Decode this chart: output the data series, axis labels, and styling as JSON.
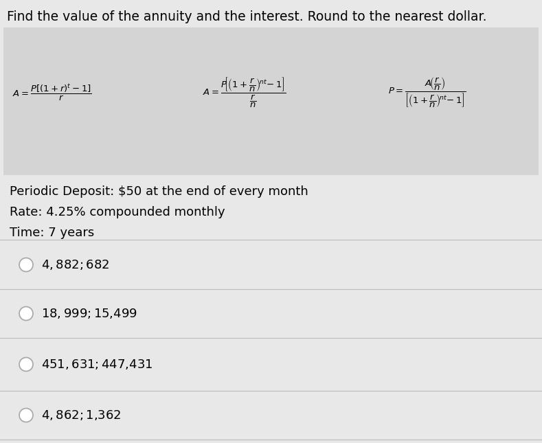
{
  "title": "Find the value of the annuity and the interest. Round to the nearest dollar.",
  "bg_color": "#e8e8e8",
  "formula_bg_color": "#d4d4d4",
  "options_bg_color": "#e0e0e0",
  "info_lines": [
    "Periodic Deposit: $50 at the end of every month",
    "Rate: 4.25% compounded monthly",
    "Time: 7 years"
  ],
  "options": [
    "$4,882; $682",
    "$18,999; $15,499",
    "$451,631; $447,431",
    "$4,862; $1,362"
  ],
  "title_fontsize": 13.5,
  "info_fontsize": 13.0,
  "option_fontsize": 13.0,
  "formula_fontsize": 9.5
}
